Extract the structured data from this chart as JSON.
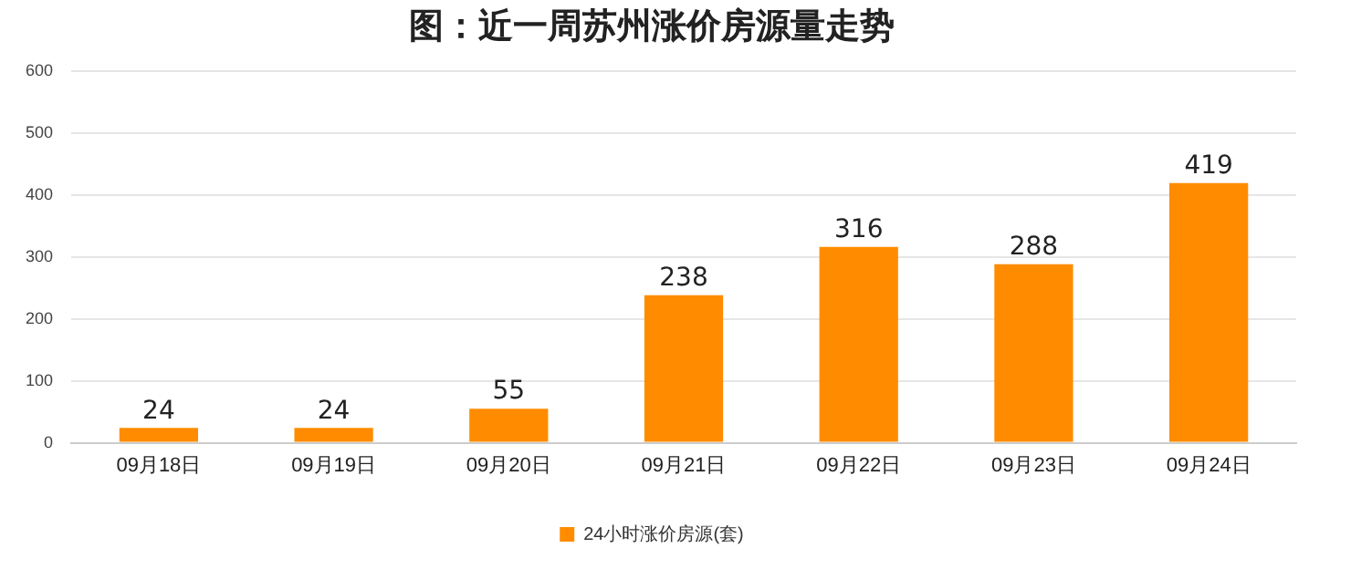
{
  "chart_data": {
    "type": "bar",
    "title": "图：近一周苏州涨价房源量走势",
    "categories": [
      "09月18日",
      "09月19日",
      "09月20日",
      "09月21日",
      "09月22日",
      "09月23日",
      "09月24日"
    ],
    "series": [
      {
        "name": "24小时涨价房源(套)",
        "color": "#ff8c00",
        "values": [
          24,
          24,
          55,
          238,
          316,
          288,
          419
        ]
      }
    ],
    "ylim": [
      0,
      600
    ],
    "yticks": [
      0,
      100,
      200,
      300,
      400,
      500,
      600
    ],
    "grid": "y",
    "legend": "bottom",
    "data_labels": true
  }
}
